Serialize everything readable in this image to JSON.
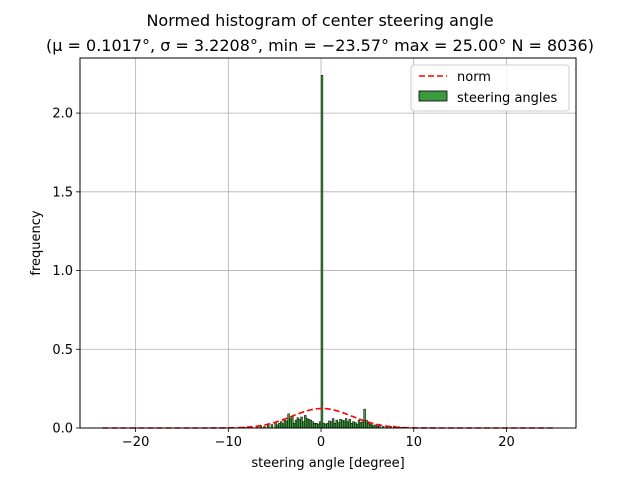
{
  "chart_data": {
    "type": "bar",
    "title": "Normed histogram of center steering angle",
    "subtitle": "(μ = 0.1017°,  σ = 3.2208°,  min = −23.57° max = 25.00° N = 8036)",
    "xlabel": "steering angle [degree]",
    "ylabel": "frequency",
    "xlim": [
      -26,
      27.5
    ],
    "ylim": [
      0,
      2.35
    ],
    "xticks": [
      -20,
      -10,
      0,
      10,
      20
    ],
    "xtick_labels": [
      "−20",
      "−10",
      "0",
      "10",
      "20"
    ],
    "yticks": [
      0.0,
      0.5,
      1.0,
      1.5,
      2.0
    ],
    "ytick_labels": [
      "0.0",
      "0.5",
      "1.0",
      "1.5",
      "2.0"
    ],
    "grid": true,
    "legend_position": "top-right",
    "legend": [
      {
        "label": "norm",
        "kind": "dashed-line",
        "color": "#ff0000"
      },
      {
        "label": "steering angles",
        "kind": "patch",
        "color": "#3c9a3c"
      }
    ],
    "colors": {
      "bar_fill": "#3c9a3c",
      "bar_edge": "#000000",
      "norm": "#ff0000",
      "grid": "#b0b0b0"
    },
    "bin_width": 0.2,
    "bins": [
      [
        -9.6,
        0.004
      ],
      [
        -8.4,
        0.006
      ],
      [
        -7.6,
        0.006
      ],
      [
        -7.0,
        0.008
      ],
      [
        -6.6,
        0.012
      ],
      [
        -6.2,
        0.01
      ],
      [
        -5.8,
        0.018
      ],
      [
        -5.4,
        0.022
      ],
      [
        -5.0,
        0.035
      ],
      [
        -4.8,
        0.02
      ],
      [
        -4.6,
        0.03
      ],
      [
        -4.4,
        0.04
      ],
      [
        -4.2,
        0.028
      ],
      [
        -4.0,
        0.05
      ],
      [
        -3.8,
        0.045
      ],
      [
        -3.6,
        0.09
      ],
      [
        -3.4,
        0.06
      ],
      [
        -3.2,
        0.075
      ],
      [
        -3.0,
        0.03
      ],
      [
        -2.8,
        0.05
      ],
      [
        -2.6,
        0.065
      ],
      [
        -2.4,
        0.055
      ],
      [
        -2.2,
        0.07
      ],
      [
        -2.0,
        0.04
      ],
      [
        -1.8,
        0.08
      ],
      [
        -1.6,
        0.06
      ],
      [
        -1.4,
        0.055
      ],
      [
        -1.2,
        0.05
      ],
      [
        -1.0,
        0.04
      ],
      [
        -0.8,
        0.03
      ],
      [
        -0.6,
        0.03
      ],
      [
        -0.4,
        0.025
      ],
      [
        -0.2,
        0.04
      ],
      [
        0.0,
        2.24
      ],
      [
        0.2,
        0.03
      ],
      [
        0.4,
        0.025
      ],
      [
        0.6,
        0.03
      ],
      [
        0.8,
        0.045
      ],
      [
        1.0,
        0.04
      ],
      [
        1.2,
        0.06
      ],
      [
        1.4,
        0.03
      ],
      [
        1.6,
        0.05
      ],
      [
        1.8,
        0.035
      ],
      [
        2.0,
        0.055
      ],
      [
        2.2,
        0.05
      ],
      [
        2.4,
        0.045
      ],
      [
        2.6,
        0.06
      ],
      [
        2.8,
        0.04
      ],
      [
        3.0,
        0.055
      ],
      [
        3.2,
        0.03
      ],
      [
        3.4,
        0.04
      ],
      [
        3.6,
        0.035
      ],
      [
        3.8,
        0.025
      ],
      [
        4.0,
        0.05
      ],
      [
        4.2,
        0.035
      ],
      [
        4.4,
        0.04
      ],
      [
        4.6,
        0.12
      ],
      [
        4.8,
        0.05
      ],
      [
        5.0,
        0.03
      ],
      [
        5.2,
        0.025
      ],
      [
        5.4,
        0.02
      ],
      [
        5.6,
        0.015
      ],
      [
        5.8,
        0.02
      ],
      [
        6.0,
        0.012
      ],
      [
        6.2,
        0.015
      ],
      [
        6.6,
        0.01
      ],
      [
        7.0,
        0.008
      ],
      [
        7.4,
        0.01
      ],
      [
        7.8,
        0.012
      ],
      [
        8.2,
        0.006
      ],
      [
        8.6,
        0.005
      ],
      [
        9.0,
        0.004
      ]
    ],
    "norm": {
      "mu": 0.1017,
      "sigma": 3.2208,
      "x_from": -23.57,
      "x_to": 25.0
    }
  }
}
